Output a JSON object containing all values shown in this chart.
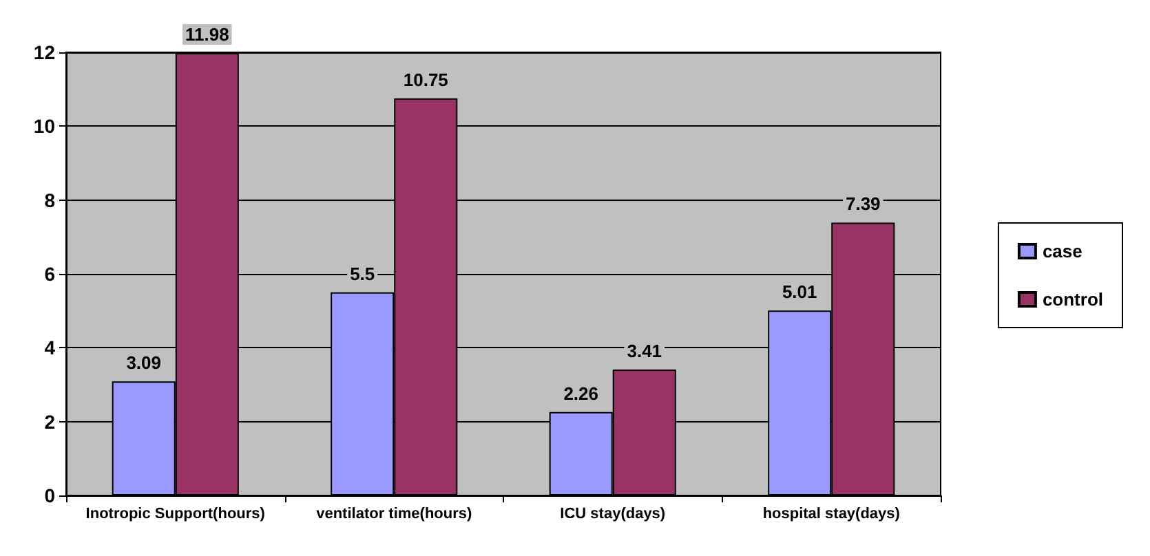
{
  "chart_data": {
    "type": "bar",
    "categories": [
      "Inotropic Support(hours)",
      "ventilator time(hours)",
      "ICU stay(days)",
      "hospital stay(days)"
    ],
    "series": [
      {
        "name": "case",
        "color": "#9999ff",
        "values": [
          3.09,
          5.5,
          2.26,
          5.01
        ]
      },
      {
        "name": "control",
        "color": "#993366",
        "values": [
          11.98,
          10.75,
          3.41,
          7.39
        ]
      }
    ],
    "ylim": [
      0,
      12
    ],
    "yticks": [
      0,
      2,
      4,
      6,
      8,
      10,
      12
    ],
    "grid": "y",
    "legend": "right",
    "data_labels": true
  }
}
